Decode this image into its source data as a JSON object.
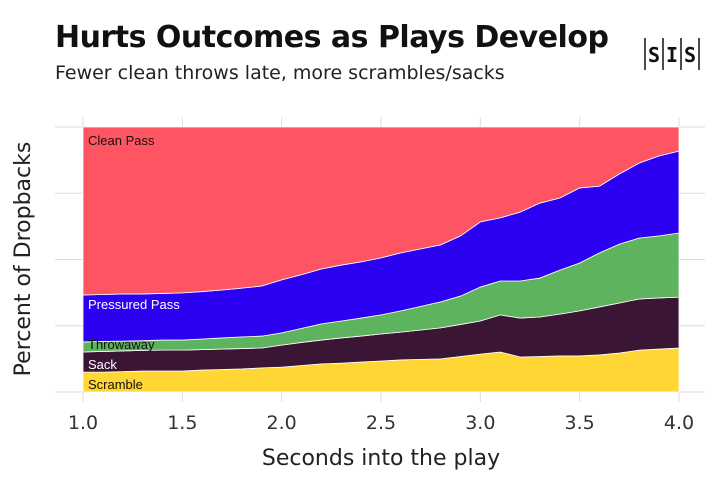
{
  "header": {
    "title": "Hurts Outcomes as Plays Develop",
    "subtitle": "Fewer clean throws late, more scrambles/sacks",
    "logo_text": "SIS"
  },
  "chart_data": {
    "type": "area",
    "stacked": true,
    "xlabel": "Seconds into the play",
    "ylabel": "Percent of Dropbacks",
    "xlim": [
      1.0,
      4.0
    ],
    "ylim": [
      0,
      100
    ],
    "x_ticks": [
      "1.0",
      "1.5",
      "2.0",
      "2.5",
      "3.0",
      "3.5",
      "4.0"
    ],
    "y_tick_labels_shown": false,
    "grid": true,
    "legend": "inline labels at left",
    "x": [
      1.0,
      1.1,
      1.2,
      1.3,
      1.4,
      1.5,
      1.6,
      1.7,
      1.8,
      1.9,
      2.0,
      2.1,
      2.2,
      2.3,
      2.4,
      2.5,
      2.6,
      2.7,
      2.8,
      2.9,
      3.0,
      3.1,
      3.2,
      3.3,
      3.4,
      3.5,
      3.6,
      3.7,
      3.8,
      3.9,
      4.0
    ],
    "series": [
      {
        "name": "Scramble",
        "color": "#FFD633",
        "label_color": "#111111",
        "values": [
          7.5,
          7.5,
          7.7,
          7.9,
          7.9,
          7.9,
          8.3,
          8.5,
          8.7,
          9.1,
          9.4,
          10.0,
          10.6,
          10.9,
          11.3,
          11.7,
          12.1,
          12.3,
          12.5,
          13.4,
          14.3,
          15.1,
          13.2,
          13.4,
          13.6,
          13.6,
          14.0,
          14.7,
          15.8,
          16.2,
          16.6
        ]
      },
      {
        "name": "Sack",
        "color": "#3A1634",
        "label_color": "#FFFFFF",
        "values": [
          7.6,
          7.8,
          7.8,
          7.8,
          7.9,
          7.9,
          7.7,
          7.7,
          7.7,
          7.5,
          8.3,
          8.7,
          9.0,
          9.5,
          9.8,
          10.2,
          10.5,
          11.1,
          11.7,
          12.1,
          12.5,
          14.0,
          14.7,
          14.9,
          15.8,
          17.0,
          18.1,
          18.9,
          19.3,
          19.3,
          19.2
        ]
      },
      {
        "name": "Throwaway",
        "color": "#5DB35E",
        "label_color": "#111111",
        "values": [
          3.8,
          3.8,
          3.7,
          3.7,
          3.8,
          3.8,
          4.0,
          4.2,
          4.4,
          4.5,
          4.6,
          5.3,
          6.1,
          6.4,
          6.8,
          7.2,
          8.0,
          8.9,
          9.8,
          10.7,
          12.8,
          12.8,
          14.0,
          14.7,
          16.6,
          18.1,
          20.4,
          22.2,
          23.0,
          23.4,
          24.2
        ]
      },
      {
        "name": "Pressured Pass",
        "color": "#2C00F0",
        "label_color": "#FFFFFF",
        "values": [
          17.7,
          17.7,
          17.8,
          17.6,
          17.6,
          17.8,
          17.9,
          18.1,
          18.4,
          18.9,
          20.0,
          20.3,
          20.7,
          21.1,
          21.2,
          21.5,
          21.9,
          21.7,
          21.5,
          22.7,
          24.6,
          23.8,
          26.0,
          28.3,
          27.2,
          28.3,
          25.2,
          26.5,
          28.3,
          30.2,
          30.9
        ]
      },
      {
        "name": "Clean Pass",
        "color": "#FF5562",
        "label_color": "#111111",
        "values": [
          63.4,
          63.2,
          63.0,
          63.0,
          62.8,
          62.6,
          62.1,
          61.5,
          60.8,
          60.0,
          57.7,
          55.7,
          53.6,
          52.1,
          50.9,
          49.4,
          47.5,
          46.0,
          44.5,
          41.1,
          35.8,
          34.3,
          32.1,
          28.7,
          26.8,
          23.0,
          22.3,
          17.7,
          13.6,
          10.9,
          9.1
        ]
      }
    ]
  }
}
